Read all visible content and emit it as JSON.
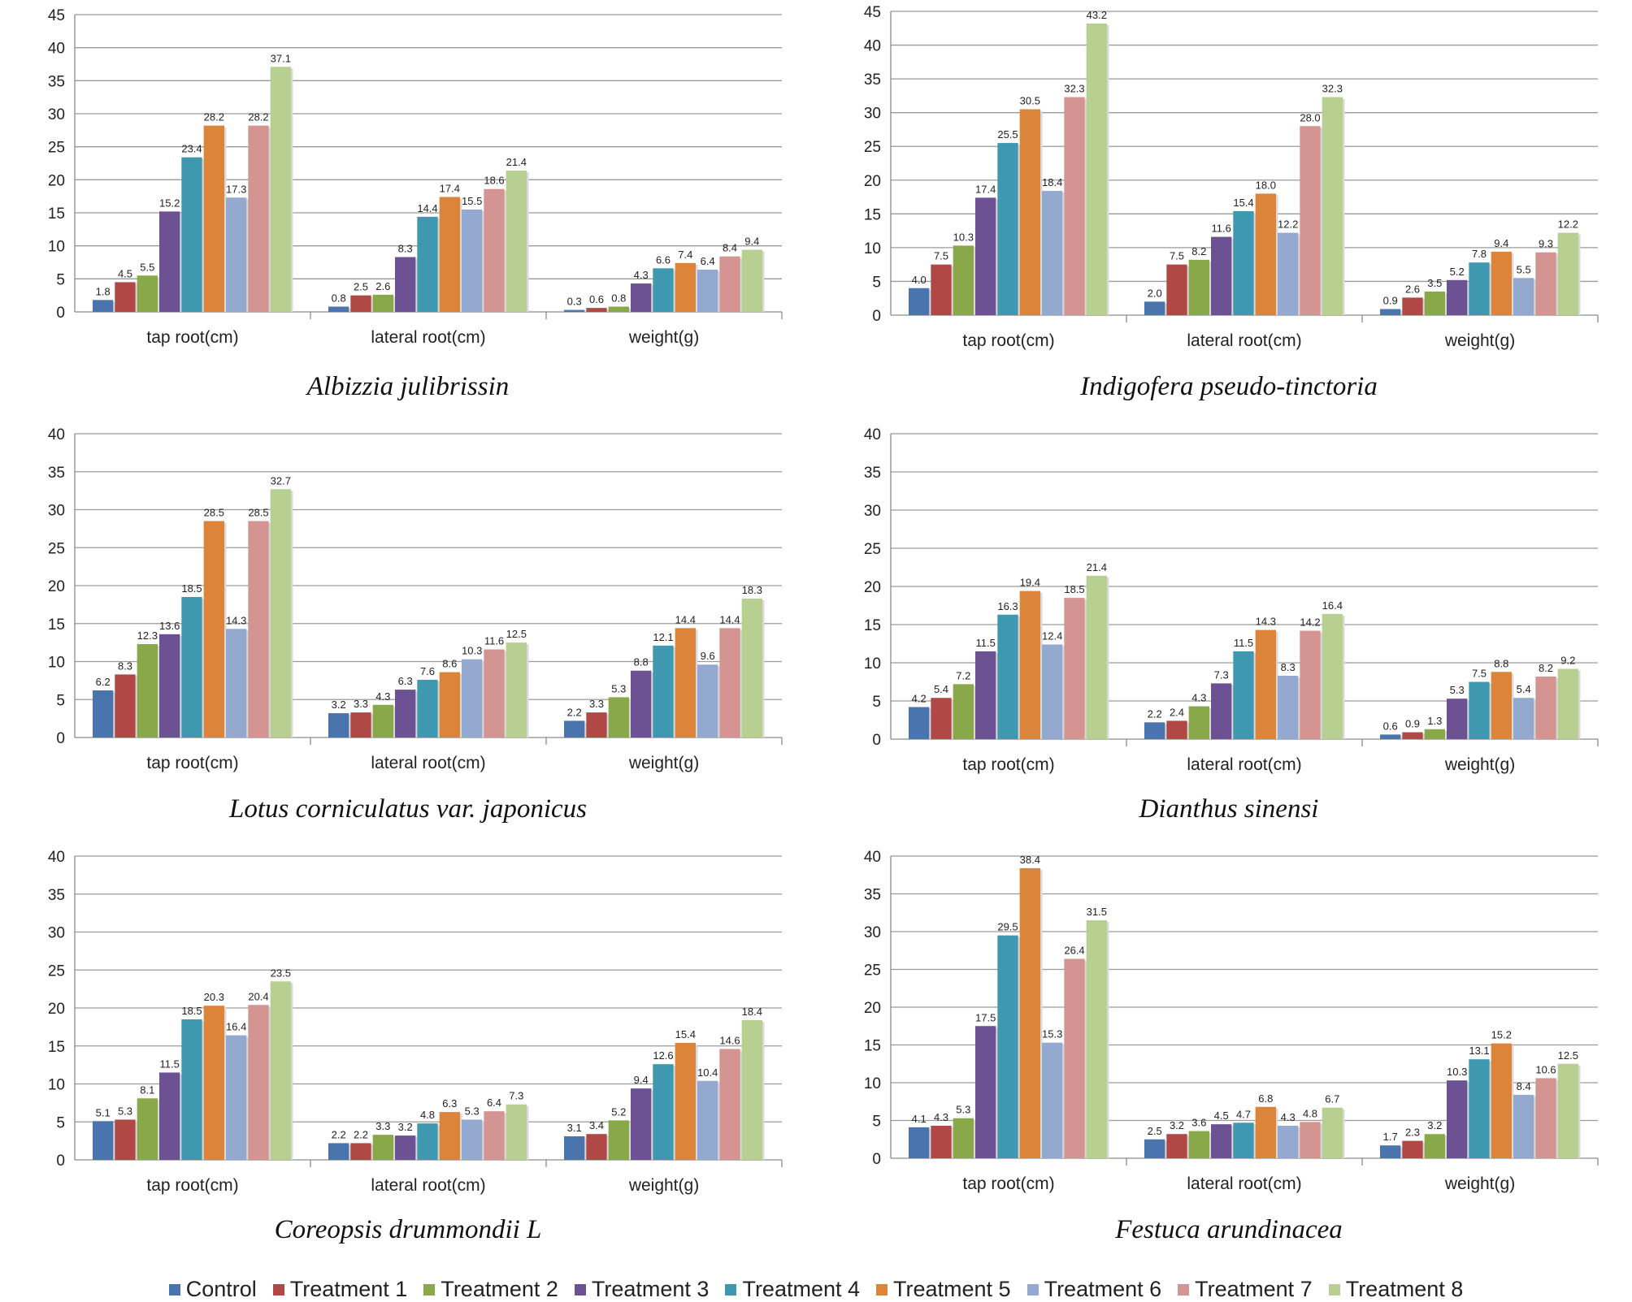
{
  "colors": [
    "#4a74ad",
    "#b04845",
    "#89a84a",
    "#6c5193",
    "#3e98b0",
    "#db843a",
    "#93a9d0",
    "#d49592",
    "#b8cf92"
  ],
  "legend": [
    "Control",
    "Treatment 1",
    "Treatment 2",
    "Treatment 3",
    "Treatment 4",
    "Treatment 5",
    "Treatment 6",
    "Treatment 7",
    "Treatment 8"
  ],
  "chart_data": [
    {
      "type": "bar",
      "title": "Albizzia julibrissin",
      "categories": [
        "tap root(cm)",
        "lateral root(cm)",
        "weight(g)"
      ],
      "yticks": [
        "0",
        "5",
        "10",
        "15",
        "20",
        "25",
        "30",
        "35",
        "40",
        "45"
      ],
      "ylim": [
        0,
        45
      ],
      "series": [
        {
          "name": "Control",
          "values": [
            1.8,
            0.8,
            0.3
          ],
          "labels": [
            "1.8",
            "0.8",
            "0.3"
          ]
        },
        {
          "name": "Treatment 1",
          "values": [
            4.5,
            2.5,
            0.6
          ],
          "labels": [
            "4.5",
            "2.5",
            "0.6"
          ]
        },
        {
          "name": "Treatment 2",
          "values": [
            5.5,
            2.6,
            0.8
          ],
          "labels": [
            "5.5",
            "2.6",
            "0.8"
          ]
        },
        {
          "name": "Treatment 3",
          "values": [
            15.2,
            8.3,
            4.3
          ],
          "labels": [
            "15.2",
            "8.3",
            "4.3"
          ]
        },
        {
          "name": "Treatment 4",
          "values": [
            23.4,
            14.4,
            6.6
          ],
          "labels": [
            "23.4",
            "14.4",
            "6.6"
          ]
        },
        {
          "name": "Treatment 5",
          "values": [
            28.2,
            17.4,
            7.4
          ],
          "labels": [
            "28.2",
            "17.4",
            "7.4"
          ]
        },
        {
          "name": "Treatment 6",
          "values": [
            17.3,
            15.5,
            6.4
          ],
          "labels": [
            "17.3",
            "15.5",
            "6.4"
          ]
        },
        {
          "name": "Treatment 7",
          "values": [
            28.2,
            18.6,
            8.4
          ],
          "labels": [
            "28.2",
            "18.6",
            "8.4"
          ]
        },
        {
          "name": "Treatment 8",
          "values": [
            37.1,
            21.4,
            9.4
          ],
          "labels": [
            "37.1",
            "21.4",
            "9.4"
          ]
        }
      ]
    },
    {
      "type": "bar",
      "title": "Indigofera pseudo-tinctoria",
      "categories": [
        "tap root(cm)",
        "lateral root(cm)",
        "weight(g)"
      ],
      "yticks": [
        "0",
        "5",
        "10",
        "15",
        "20",
        "25",
        "30",
        "35",
        "40",
        "45"
      ],
      "ylim": [
        0,
        45
      ],
      "series": [
        {
          "name": "Control",
          "values": [
            4.0,
            2.0,
            0.9
          ],
          "labels": [
            "4.0",
            "2.0",
            "0.9"
          ]
        },
        {
          "name": "Treatment 1",
          "values": [
            7.5,
            7.5,
            2.6
          ],
          "labels": [
            "7.5",
            "7.5",
            "2.6"
          ]
        },
        {
          "name": "Treatment 2",
          "values": [
            10.3,
            8.2,
            3.5
          ],
          "labels": [
            "10.3",
            "8.2",
            "3.5"
          ]
        },
        {
          "name": "Treatment 3",
          "values": [
            17.4,
            11.6,
            5.2
          ],
          "labels": [
            "17.4",
            "11.6",
            "5.2"
          ]
        },
        {
          "name": "Treatment 4",
          "values": [
            25.5,
            15.4,
            7.8
          ],
          "labels": [
            "25.5",
            "15.4",
            "7.8"
          ]
        },
        {
          "name": "Treatment 5",
          "values": [
            30.5,
            18.0,
            9.4
          ],
          "labels": [
            "30.5",
            "18.0",
            "9.4"
          ]
        },
        {
          "name": "Treatment 6",
          "values": [
            18.4,
            12.2,
            5.5
          ],
          "labels": [
            "18.4",
            "12.2",
            "5.5"
          ]
        },
        {
          "name": "Treatment 7",
          "values": [
            32.3,
            28.0,
            9.3
          ],
          "labels": [
            "32.3",
            "28.0",
            "9.3"
          ]
        },
        {
          "name": "Treatment 8",
          "values": [
            43.2,
            32.3,
            12.2
          ],
          "labels": [
            "43.2",
            "32.3",
            "12.2"
          ]
        }
      ]
    },
    {
      "type": "bar",
      "title": "Lotus corniculatus var. japonicus",
      "categories": [
        "tap root(cm)",
        "lateral root(cm)",
        "weight(g)"
      ],
      "yticks": [
        "0",
        "5",
        "10",
        "15",
        "20",
        "25",
        "30",
        "35",
        "40"
      ],
      "ylim": [
        0,
        40
      ],
      "series": [
        {
          "name": "Control",
          "values": [
            6.2,
            3.2,
            2.2
          ],
          "labels": [
            "6.2",
            "3.2",
            "2.2"
          ]
        },
        {
          "name": "Treatment 1",
          "values": [
            8.3,
            3.3,
            3.3
          ],
          "labels": [
            "8.3",
            "3.3",
            "3.3"
          ]
        },
        {
          "name": "Treatment 2",
          "values": [
            12.3,
            4.3,
            5.3
          ],
          "labels": [
            "12.3",
            "4.3",
            "5.3"
          ]
        },
        {
          "name": "Treatment 3",
          "values": [
            13.6,
            6.3,
            8.8
          ],
          "labels": [
            "13.6",
            "6.3",
            "8.8"
          ]
        },
        {
          "name": "Treatment 4",
          "values": [
            18.5,
            7.6,
            12.1
          ],
          "labels": [
            "18.5",
            "7.6",
            "12.1"
          ]
        },
        {
          "name": "Treatment 5",
          "values": [
            28.5,
            8.6,
            14.4
          ],
          "labels": [
            "28.5",
            "8.6",
            "14.4"
          ]
        },
        {
          "name": "Treatment 6",
          "values": [
            14.3,
            10.3,
            9.6
          ],
          "labels": [
            "14.3",
            "10.3",
            "9.6"
          ]
        },
        {
          "name": "Treatment 7",
          "values": [
            28.5,
            11.6,
            14.4
          ],
          "labels": [
            "28.5",
            "11.6",
            "14.4"
          ]
        },
        {
          "name": "Treatment 8",
          "values": [
            32.7,
            12.5,
            18.3
          ],
          "labels": [
            "32.7",
            "12.5",
            "18.3"
          ]
        }
      ]
    },
    {
      "type": "bar",
      "title": "Dianthus sinensi",
      "categories": [
        "tap root(cm)",
        "lateral root(cm)",
        "weight(g)"
      ],
      "yticks": [
        "0",
        "5",
        "10",
        "15",
        "20",
        "25",
        "30",
        "35",
        "40"
      ],
      "ylim": [
        0,
        40
      ],
      "series": [
        {
          "name": "Control",
          "values": [
            4.2,
            2.2,
            0.6
          ],
          "labels": [
            "4.2",
            "2.2",
            "0.6"
          ]
        },
        {
          "name": "Treatment 1",
          "values": [
            5.4,
            2.4,
            0.9
          ],
          "labels": [
            "5.4",
            "2.4",
            "0.9"
          ]
        },
        {
          "name": "Treatment 2",
          "values": [
            7.2,
            4.3,
            1.3
          ],
          "labels": [
            "7.2",
            "4.3",
            "1.3"
          ]
        },
        {
          "name": "Treatment 3",
          "values": [
            11.5,
            7.3,
            5.3
          ],
          "labels": [
            "11.5",
            "7.3",
            "5.3"
          ]
        },
        {
          "name": "Treatment 4",
          "values": [
            16.3,
            11.5,
            7.5
          ],
          "labels": [
            "16.3",
            "11.5",
            "7.5"
          ]
        },
        {
          "name": "Treatment 5",
          "values": [
            19.4,
            14.3,
            8.8
          ],
          "labels": [
            "19.4",
            "14.3",
            "8.8"
          ]
        },
        {
          "name": "Treatment 6",
          "values": [
            12.4,
            8.3,
            5.4
          ],
          "labels": [
            "12.4",
            "8.3",
            "5.4"
          ]
        },
        {
          "name": "Treatment 7",
          "values": [
            18.5,
            14.2,
            8.2
          ],
          "labels": [
            "18.5",
            "14.2",
            "8.2"
          ]
        },
        {
          "name": "Treatment 8",
          "values": [
            21.4,
            16.4,
            9.2
          ],
          "labels": [
            "21.4",
            "16.4",
            "9.2"
          ]
        }
      ]
    },
    {
      "type": "bar",
      "title": "Coreopsis drummondii L",
      "categories": [
        "tap root(cm)",
        "lateral root(cm)",
        "weight(g)"
      ],
      "yticks": [
        "0",
        "5",
        "10",
        "15",
        "20",
        "25",
        "30",
        "35",
        "40"
      ],
      "ylim": [
        0,
        40
      ],
      "series": [
        {
          "name": "Control",
          "values": [
            5.1,
            2.2,
            3.1
          ],
          "labels": [
            "5.1",
            "2.2",
            "3.1"
          ]
        },
        {
          "name": "Treatment 1",
          "values": [
            5.3,
            2.2,
            3.4
          ],
          "labels": [
            "5.3",
            "2.2",
            "3.4"
          ]
        },
        {
          "name": "Treatment 2",
          "values": [
            8.1,
            3.3,
            5.2
          ],
          "labels": [
            "8.1",
            "3.3",
            "5.2"
          ]
        },
        {
          "name": "Treatment 3",
          "values": [
            11.5,
            3.2,
            9.4
          ],
          "labels": [
            "11.5",
            "3.2",
            "9.4"
          ]
        },
        {
          "name": "Treatment 4",
          "values": [
            18.5,
            4.8,
            12.6
          ],
          "labels": [
            "18.5",
            "4.8",
            "12.6"
          ]
        },
        {
          "name": "Treatment 5",
          "values": [
            20.3,
            6.3,
            15.4
          ],
          "labels": [
            "20.3",
            "6.3",
            "15.4"
          ]
        },
        {
          "name": "Treatment 6",
          "values": [
            16.4,
            5.3,
            10.4
          ],
          "labels": [
            "16.4",
            "5.3",
            "10.4"
          ]
        },
        {
          "name": "Treatment 7",
          "values": [
            20.4,
            6.4,
            14.6
          ],
          "labels": [
            "20.4",
            "6.4",
            "14.6"
          ]
        },
        {
          "name": "Treatment 8",
          "values": [
            23.5,
            7.3,
            18.4
          ],
          "labels": [
            "23.5",
            "7.3",
            "18.4"
          ]
        }
      ]
    },
    {
      "type": "bar",
      "title": "Festuca arundinacea",
      "categories": [
        "tap root(cm)",
        "lateral root(cm)",
        "weight(g)"
      ],
      "yticks": [
        "0",
        "5",
        "10",
        "15",
        "20",
        "25",
        "30",
        "35",
        "40"
      ],
      "ylim": [
        0,
        40
      ],
      "series": [
        {
          "name": "Control",
          "values": [
            4.1,
            2.5,
            1.7
          ],
          "labels": [
            "4.1",
            "2.5",
            "1.7"
          ]
        },
        {
          "name": "Treatment 1",
          "values": [
            4.3,
            3.2,
            2.3
          ],
          "labels": [
            "4.3",
            "3.2",
            "2.3"
          ]
        },
        {
          "name": "Treatment 2",
          "values": [
            5.3,
            3.6,
            3.2
          ],
          "labels": [
            "5.3",
            "3.6",
            "3.2"
          ]
        },
        {
          "name": "Treatment 3",
          "values": [
            17.5,
            4.5,
            10.3
          ],
          "labels": [
            "17.5",
            "4.5",
            "10.3"
          ]
        },
        {
          "name": "Treatment 4",
          "values": [
            29.5,
            4.7,
            13.1
          ],
          "labels": [
            "29.5",
            "4.7",
            "13.1"
          ]
        },
        {
          "name": "Treatment 5",
          "values": [
            38.4,
            6.8,
            15.2
          ],
          "labels": [
            "38.4",
            "6.8",
            "15.2"
          ]
        },
        {
          "name": "Treatment 6",
          "values": [
            15.3,
            4.3,
            8.4
          ],
          "labels": [
            "15.3",
            "4.3",
            "8.4"
          ]
        },
        {
          "name": "Treatment 7",
          "values": [
            26.4,
            4.8,
            10.6
          ],
          "labels": [
            "26.4",
            "4.8",
            "10.6"
          ]
        },
        {
          "name": "Treatment 8",
          "values": [
            31.5,
            6.7,
            12.5
          ],
          "labels": [
            "31.5",
            "6.7",
            "12.5"
          ]
        }
      ]
    }
  ]
}
